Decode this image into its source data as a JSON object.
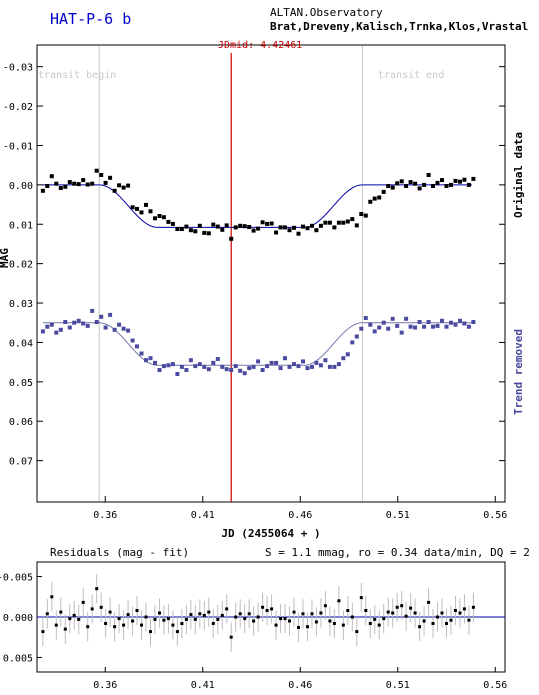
{
  "header": {
    "title": "HAT-P-6 b",
    "observatory": "ALTAN.Observatory",
    "observers": "Brat,Dreveny,Kalisch,Trnka,Klos,Vrastal"
  },
  "colors": {
    "title": "#0000cc",
    "original": "#000000",
    "detrended": "#4a4aa0",
    "fit": "#0000aa",
    "jdmid": "#cc0000",
    "transit_marks": "#c8c8c8"
  },
  "chart_data": [
    {
      "type": "scatter",
      "xlabel": "JD (2455064 + )",
      "ylabel": "MAG",
      "xlim": [
        0.325,
        0.565
      ],
      "ylim": [
        0.0805,
        -0.0355
      ],
      "x_ticks": [
        0.36,
        0.41,
        0.46,
        0.51,
        0.56
      ],
      "x_tick_labels": [
        "0.36",
        "0.41",
        "0.46",
        "0.51",
        "0.56"
      ],
      "y_ticks": [
        -0.03,
        -0.02,
        -0.01,
        0.0,
        0.01,
        0.02,
        0.03,
        0.04,
        0.05,
        0.06,
        0.07
      ],
      "y_tick_labels": [
        "-0.03",
        "-0.02",
        "-0.01",
        "0.00",
        "0.01",
        "0.02",
        "0.03",
        "0.04",
        "0.05",
        "0.06",
        "0.07"
      ],
      "jdmid": {
        "x": 0.4246,
        "label": "JDmid: 4.42461"
      },
      "transit_begin": {
        "x": 0.3569,
        "label": "transit begin"
      },
      "transit_end": {
        "x": 0.4919,
        "label": "transit end"
      },
      "model": {
        "depth": 0.0108,
        "t1": 0.3569,
        "t2": 0.3869,
        "t3": 0.4619,
        "t4": 0.4919
      },
      "series": [
        {
          "name": "Original data",
          "offset": 0.0,
          "x": [
            0.328,
            0.3303,
            0.3326,
            0.3349,
            0.3372,
            0.3395,
            0.3418,
            0.3441,
            0.3464,
            0.3487,
            0.351,
            0.3533,
            0.3556,
            0.3579,
            0.3602,
            0.3625,
            0.3648,
            0.3671,
            0.3694,
            0.3717,
            0.374,
            0.3763,
            0.3786,
            0.3809,
            0.3832,
            0.3855,
            0.3878,
            0.3901,
            0.3924,
            0.3947,
            0.397,
            0.3993,
            0.4016,
            0.4039,
            0.4062,
            0.4085,
            0.4108,
            0.4131,
            0.4154,
            0.4177,
            0.42,
            0.4223,
            0.4246,
            0.4269,
            0.4292,
            0.4315,
            0.4338,
            0.4361,
            0.4384,
            0.4407,
            0.443,
            0.4453,
            0.4476,
            0.4499,
            0.4522,
            0.4545,
            0.4568,
            0.4591,
            0.4614,
            0.4637,
            0.466,
            0.4683,
            0.4706,
            0.4729,
            0.4752,
            0.4775,
            0.4798,
            0.4821,
            0.4844,
            0.4867,
            0.489,
            0.4913,
            0.4936,
            0.4959,
            0.4982,
            0.5005,
            0.5028,
            0.5051,
            0.5074,
            0.5097,
            0.512,
            0.5143,
            0.5166,
            0.5189,
            0.5212,
            0.5235,
            0.5258,
            0.5281,
            0.5304,
            0.5327,
            0.535,
            0.5373,
            0.5396,
            0.5419,
            0.5442,
            0.5465,
            0.5488
          ],
          "y": [
            0.0015,
            0.0003,
            -0.0022,
            -0.0003,
            0.0008,
            0.0005,
            -0.0007,
            -0.0003,
            -0.0002,
            -0.0012,
            -0.0001,
            -0.0003,
            -0.0036,
            -0.0025,
            -0.0005,
            -0.0018,
            0.0015,
            0.0001,
            0.0007,
            0.0002,
            0.0057,
            0.0061,
            0.007,
            0.0051,
            0.0067,
            0.0085,
            0.0079,
            0.0082,
            0.0094,
            0.0099,
            0.0112,
            0.0112,
            0.0106,
            0.0115,
            0.0118,
            0.0104,
            0.0122,
            0.0123,
            0.0101,
            0.0106,
            0.0114,
            0.0103,
            0.0137,
            0.0108,
            0.0104,
            0.0105,
            0.0107,
            0.0116,
            0.0111,
            0.0095,
            0.0099,
            0.0098,
            0.0121,
            0.0108,
            0.0108,
            0.0115,
            0.0109,
            0.0124,
            0.0106,
            0.011,
            0.0104,
            0.0115,
            0.0104,
            0.0096,
            0.0096,
            0.0108,
            0.0096,
            0.0096,
            0.0093,
            0.0087,
            0.0103,
            0.0074,
            0.0078,
            0.0043,
            0.0035,
            0.0032,
            0.0018,
            0.0003,
            0.0007,
            -0.0004,
            -0.0009,
            0.0003,
            -0.0007,
            -0.0003,
            0.0009,
            0.0,
            -0.0025,
            0.0003,
            -0.0005,
            -0.0012,
            0.0003,
            0.0,
            -0.001,
            -0.0008,
            -0.0013,
            0.0,
            -0.0015
          ]
        },
        {
          "name": "Trend removed",
          "offset": 0.035,
          "x": [
            0.328,
            0.3303,
            0.3326,
            0.3349,
            0.3372,
            0.3395,
            0.3418,
            0.3441,
            0.3464,
            0.3487,
            0.351,
            0.3533,
            0.3556,
            0.3579,
            0.3602,
            0.3625,
            0.3648,
            0.3671,
            0.3694,
            0.3717,
            0.374,
            0.3763,
            0.3786,
            0.3809,
            0.3832,
            0.3855,
            0.3878,
            0.3901,
            0.3924,
            0.3947,
            0.397,
            0.3993,
            0.4016,
            0.4039,
            0.4062,
            0.4085,
            0.4108,
            0.4131,
            0.4154,
            0.4177,
            0.42,
            0.4223,
            0.4246,
            0.4269,
            0.4292,
            0.4315,
            0.4338,
            0.4361,
            0.4384,
            0.4407,
            0.443,
            0.4453,
            0.4476,
            0.4499,
            0.4522,
            0.4545,
            0.4568,
            0.4591,
            0.4614,
            0.4637,
            0.466,
            0.4683,
            0.4706,
            0.4729,
            0.4752,
            0.4775,
            0.4798,
            0.4821,
            0.4844,
            0.4867,
            0.489,
            0.4913,
            0.4936,
            0.4959,
            0.4982,
            0.5005,
            0.5028,
            0.5051,
            0.5074,
            0.5097,
            0.512,
            0.5143,
            0.5166,
            0.5189,
            0.5212,
            0.5235,
            0.5258,
            0.5281,
            0.5304,
            0.5327,
            0.535,
            0.5373,
            0.5396,
            0.5419,
            0.5442,
            0.5465,
            0.5488
          ],
          "y": [
            0.0372,
            0.036,
            0.0355,
            0.0375,
            0.0368,
            0.0348,
            0.0362,
            0.035,
            0.0345,
            0.0352,
            0.0358,
            0.032,
            0.0348,
            0.0335,
            0.0362,
            0.033,
            0.0368,
            0.0355,
            0.0365,
            0.037,
            0.0395,
            0.041,
            0.0428,
            0.0445,
            0.044,
            0.0452,
            0.047,
            0.046,
            0.0458,
            0.0455,
            0.048,
            0.0462,
            0.047,
            0.0445,
            0.046,
            0.0455,
            0.0462,
            0.0468,
            0.0452,
            0.0442,
            0.0462,
            0.0468,
            0.047,
            0.046,
            0.0472,
            0.0478,
            0.0465,
            0.0462,
            0.0448,
            0.047,
            0.046,
            0.0452,
            0.0452,
            0.0465,
            0.044,
            0.0462,
            0.0455,
            0.046,
            0.0448,
            0.0465,
            0.0462,
            0.0452,
            0.0458,
            0.0445,
            0.0462,
            0.0462,
            0.0455,
            0.044,
            0.043,
            0.04,
            0.0385,
            0.0365,
            0.0338,
            0.0355,
            0.0372,
            0.0362,
            0.035,
            0.0365,
            0.034,
            0.0358,
            0.0375,
            0.034,
            0.036,
            0.0362,
            0.0348,
            0.036,
            0.0348,
            0.036,
            0.0358,
            0.0345,
            0.036,
            0.035,
            0.0355,
            0.0345,
            0.0352,
            0.036,
            0.0348
          ]
        }
      ],
      "series_labels": [
        "Original data",
        "Trend removed"
      ]
    },
    {
      "type": "scatter",
      "title": "Residuals (mag - fit)",
      "stats": "S = 1.1 mmag, ro = 0.34 data/min, DQ = 2",
      "xlim": [
        0.325,
        0.565
      ],
      "ylim": [
        0.0068,
        -0.0068
      ],
      "x_ticks": [
        0.36,
        0.41,
        0.46,
        0.51,
        0.56
      ],
      "x_tick_labels": [
        "0.36",
        "0.41",
        "0.46",
        "0.51",
        "0.56"
      ],
      "y_ticks": [
        -0.005,
        0.0,
        0.005
      ],
      "y_tick_labels": [
        "-0.005",
        "0.000",
        "0.005"
      ],
      "errorbar": 0.0018,
      "x": [
        0.328,
        0.3303,
        0.3326,
        0.3349,
        0.3372,
        0.3395,
        0.3418,
        0.3441,
        0.3464,
        0.3487,
        0.351,
        0.3533,
        0.3556,
        0.3579,
        0.3602,
        0.3625,
        0.3648,
        0.3671,
        0.3694,
        0.3717,
        0.374,
        0.3763,
        0.3786,
        0.3809,
        0.3832,
        0.3855,
        0.3878,
        0.3901,
        0.3924,
        0.3947,
        0.397,
        0.3993,
        0.4016,
        0.4039,
        0.4062,
        0.4085,
        0.4108,
        0.4131,
        0.4154,
        0.4177,
        0.42,
        0.4223,
        0.4246,
        0.4269,
        0.4292,
        0.4315,
        0.4338,
        0.4361,
        0.4384,
        0.4407,
        0.443,
        0.4453,
        0.4476,
        0.4499,
        0.4522,
        0.4545,
        0.4568,
        0.4591,
        0.4614,
        0.4637,
        0.466,
        0.4683,
        0.4706,
        0.4729,
        0.4752,
        0.4775,
        0.4798,
        0.4821,
        0.4844,
        0.4867,
        0.489,
        0.4913,
        0.4936,
        0.4959,
        0.4982,
        0.5005,
        0.5028,
        0.5051,
        0.5074,
        0.5097,
        0.512,
        0.5143,
        0.5166,
        0.5189,
        0.5212,
        0.5235,
        0.5258,
        0.5281,
        0.5304,
        0.5327,
        0.535,
        0.5373,
        0.5396,
        0.5419,
        0.5442,
        0.5465,
        0.5488
      ],
      "y": [
        0.0018,
        -0.0004,
        -0.0025,
        0.001,
        -0.0006,
        0.0015,
        0.0002,
        -0.0002,
        0.0003,
        -0.0018,
        0.0012,
        -0.001,
        -0.0035,
        -0.0012,
        0.0008,
        -0.0006,
        0.0012,
        0.0002,
        0.001,
        -0.0003,
        0.0005,
        -0.0008,
        0.001,
        0.0,
        0.0018,
        0.0003,
        -0.0005,
        0.0004,
        0.0002,
        0.001,
        0.0018,
        0.0008,
        0.0003,
        -0.0003,
        0.0003,
        -0.0004,
        -0.0002,
        -0.0006,
        0.0008,
        0.0003,
        -0.0002,
        -0.001,
        0.0025,
        0.0,
        -0.0004,
        0.0002,
        -0.0004,
        0.0005,
        0.0,
        -0.0012,
        -0.0008,
        -0.001,
        0.001,
        0.0002,
        0.0002,
        0.0005,
        -0.0006,
        0.0013,
        -0.0004,
        0.0012,
        -0.0004,
        0.0006,
        -0.0005,
        -0.0014,
        0.0005,
        0.0008,
        -0.002,
        0.001,
        -0.0008,
        0.0,
        0.0018,
        -0.0024,
        -0.0008,
        0.0008,
        0.0003,
        0.001,
        0.0002,
        -0.0006,
        -0.0005,
        -0.0012,
        -0.0014,
        -0.0001,
        -0.0011,
        -0.0005,
        0.0012,
        0.0005,
        -0.0018,
        0.0008,
        0.0,
        -0.0005,
        0.0008,
        0.0004,
        -0.0008,
        -0.0005,
        -0.001,
        0.0004,
        -0.0012
      ]
    }
  ]
}
